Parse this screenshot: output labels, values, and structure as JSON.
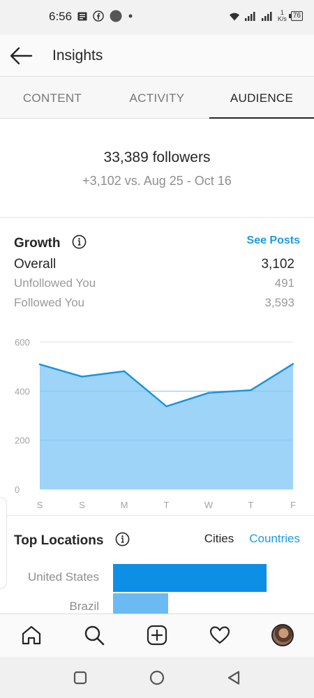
{
  "status_bar": {
    "time": "6:56",
    "speed_value": "1",
    "speed_unit": "K/s",
    "battery": "76"
  },
  "header": {
    "title": "Insights"
  },
  "tabs": [
    {
      "label": "CONTENT",
      "active": false
    },
    {
      "label": "ACTIVITY",
      "active": false
    },
    {
      "label": "AUDIENCE",
      "active": true
    }
  ],
  "followers": {
    "count_text": "33,389 followers",
    "delta_text": "+3,102 vs. Aug 25 - Oct 16"
  },
  "growth": {
    "title": "Growth",
    "see_posts_label": "See Posts",
    "overall_label": "Overall",
    "overall_value": "3,102",
    "unfollowed_label": "Unfollowed You",
    "unfollowed_value": "491",
    "followed_label": "Followed You",
    "followed_value": "3,593"
  },
  "chart_data": {
    "type": "area",
    "categories": [
      "S",
      "S",
      "M",
      "T",
      "W",
      "T",
      "F"
    ],
    "values": [
      509,
      459,
      481,
      338,
      393,
      404,
      511
    ],
    "ylim": [
      0,
      600
    ],
    "yticks": [
      0,
      200,
      400,
      600
    ],
    "grid": true,
    "colors": {
      "fill": "#9dd4f8",
      "line": "#1792e3"
    }
  },
  "locations": {
    "title": "Top Locations",
    "cities_label": "Cities",
    "countries_label": "Countries",
    "items": [
      {
        "label": "United States",
        "share": 1.0,
        "color": "#0e8fe6"
      },
      {
        "label": "Brazil",
        "share": 0.36,
        "color": "#6cbaf4"
      }
    ]
  },
  "icons": {
    "back": "arrow-left-icon",
    "info": "info-icon",
    "home": "home-icon",
    "search": "search-icon",
    "add": "add-post-icon",
    "activity": "heart-icon"
  }
}
